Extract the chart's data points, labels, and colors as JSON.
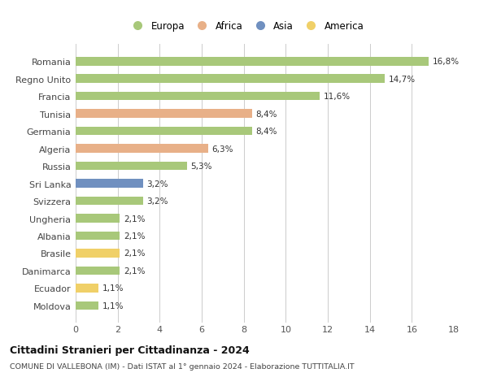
{
  "countries": [
    "Moldova",
    "Ecuador",
    "Danimarca",
    "Brasile",
    "Albania",
    "Ungheria",
    "Svizzera",
    "Sri Lanka",
    "Russia",
    "Algeria",
    "Germania",
    "Tunisia",
    "Francia",
    "Regno Unito",
    "Romania"
  ],
  "values": [
    1.1,
    1.1,
    2.1,
    2.1,
    2.1,
    2.1,
    3.2,
    3.2,
    5.3,
    6.3,
    8.4,
    8.4,
    11.6,
    14.7,
    16.8
  ],
  "continents": [
    "Europa",
    "America",
    "Europa",
    "America",
    "Europa",
    "Europa",
    "Europa",
    "Asia",
    "Europa",
    "Africa",
    "Europa",
    "Africa",
    "Europa",
    "Europa",
    "Europa"
  ],
  "colors": {
    "Europa": "#a8c87a",
    "Africa": "#e8b088",
    "Asia": "#7090c0",
    "America": "#f0d068"
  },
  "labels": [
    "1,1%",
    "1,1%",
    "2,1%",
    "2,1%",
    "2,1%",
    "2,1%",
    "3,2%",
    "3,2%",
    "5,3%",
    "6,3%",
    "8,4%",
    "8,4%",
    "11,6%",
    "14,7%",
    "16,8%"
  ],
  "title": "Cittadini Stranieri per Cittadinanza - 2024",
  "subtitle": "COMUNE DI VALLEBONA (IM) - Dati ISTAT al 1° gennaio 2024 - Elaborazione TUTTITALIA.IT",
  "xlim": [
    0,
    18
  ],
  "xticks": [
    0,
    2,
    4,
    6,
    8,
    10,
    12,
    14,
    16,
    18
  ],
  "legend_order": [
    "Europa",
    "Africa",
    "Asia",
    "America"
  ],
  "background_color": "#ffffff",
  "grid_color": "#cccccc",
  "bar_height": 0.5
}
